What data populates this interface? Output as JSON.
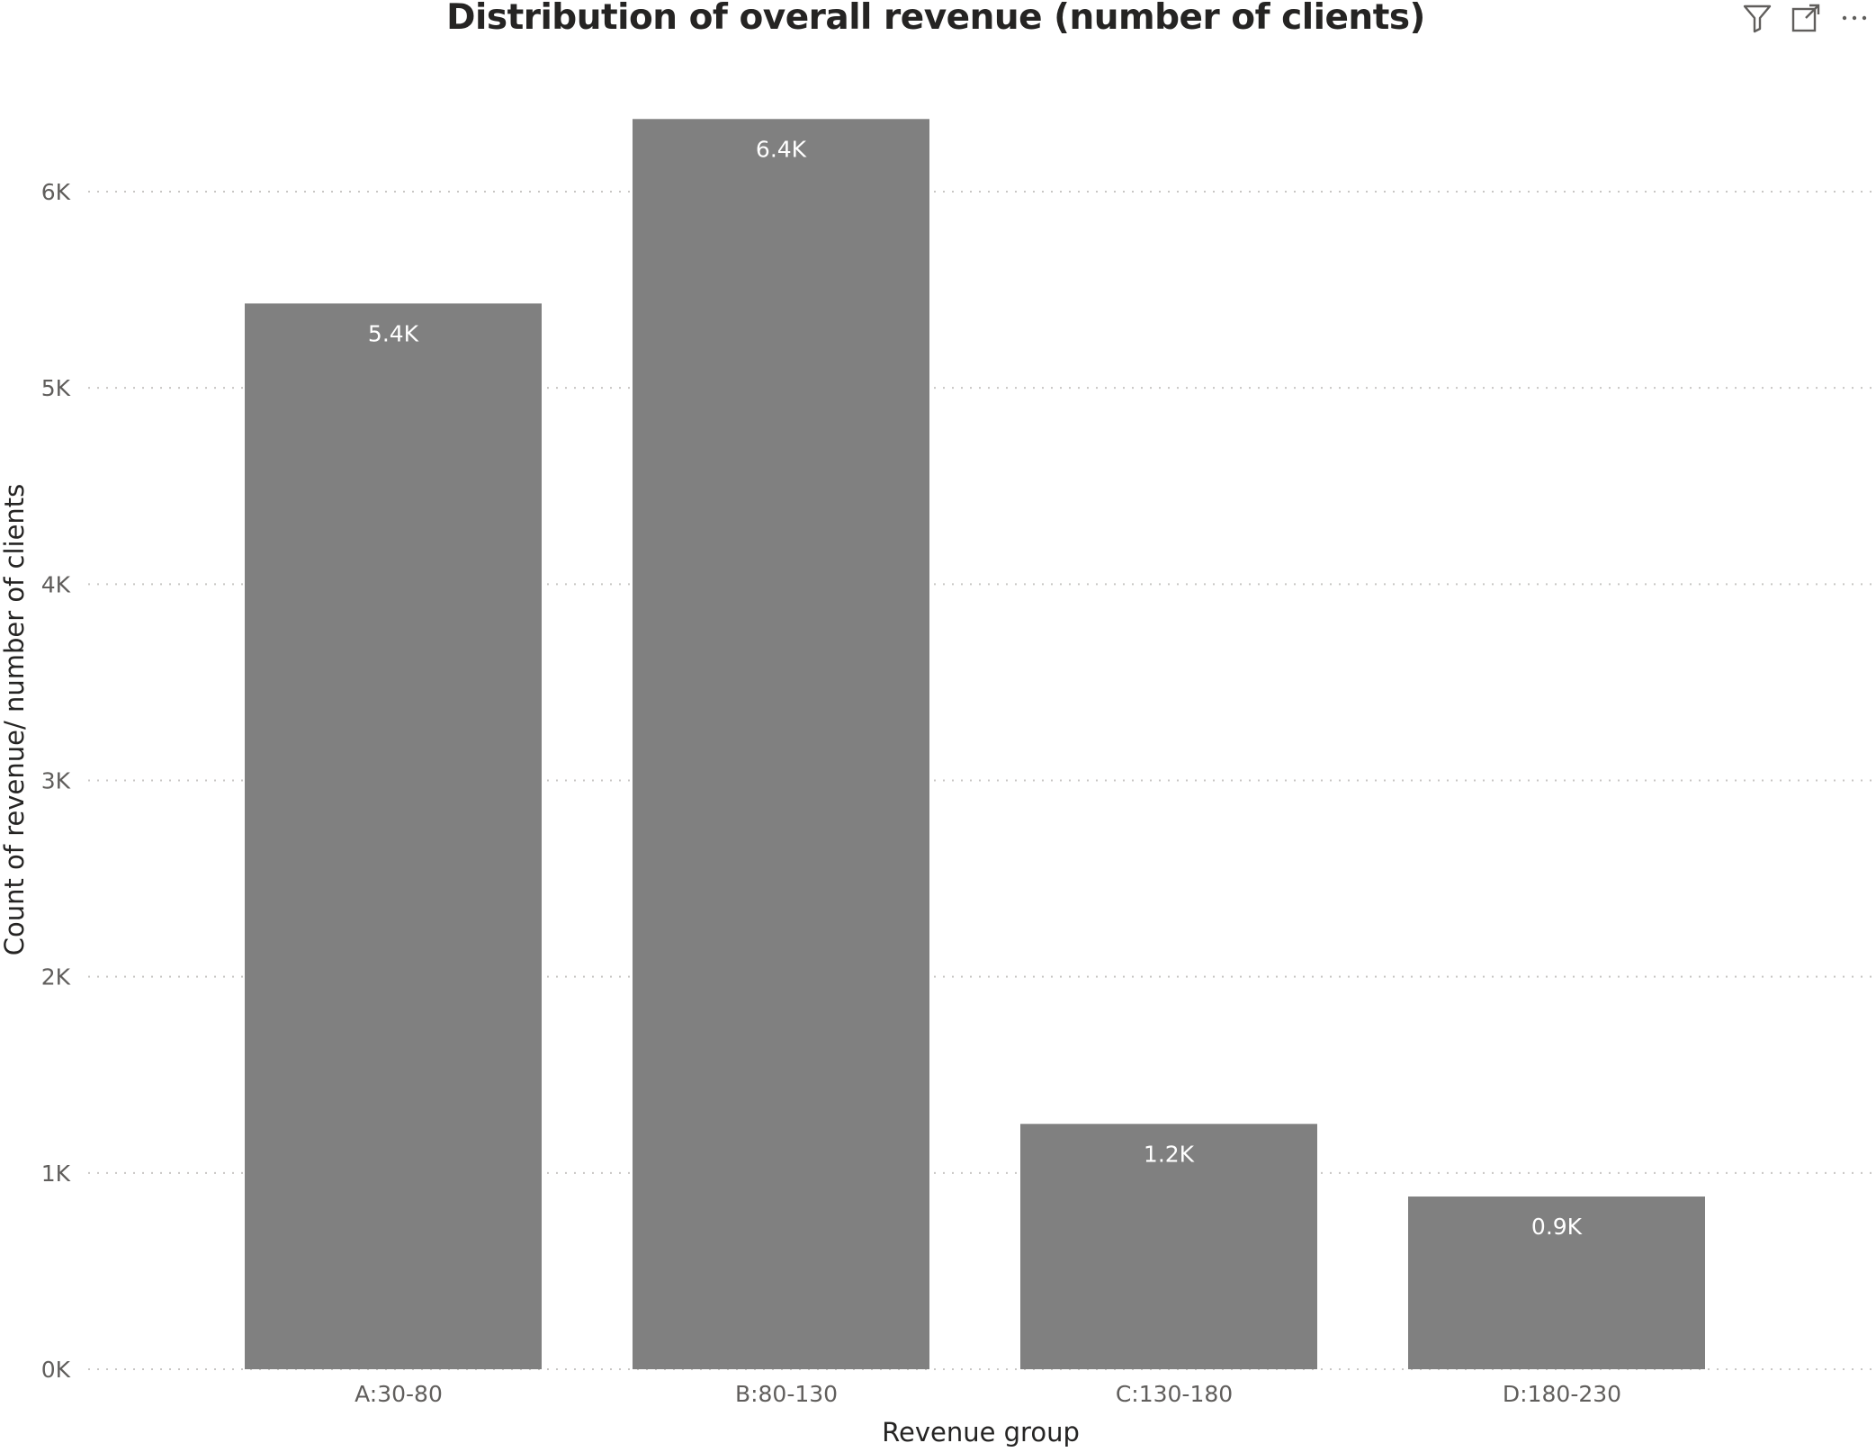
{
  "visual": {
    "header_icons": [
      "filter-icon",
      "focus-mode-icon",
      "more-options-icon"
    ]
  },
  "chart_data": {
    "type": "bar",
    "title": "Distribution of overall revenue (number of clients)",
    "xlabel": "Revenue group",
    "ylabel": "Count of revenue/ number of clients",
    "categories": [
      "A:30-80",
      "B:80-130",
      "C:130-180",
      "D:180-230"
    ],
    "values": [
      5430,
      6370,
      1250,
      880
    ],
    "data_labels": [
      "5.4K",
      "6.4K",
      "1.2K",
      "0.9K"
    ],
    "ylim": [
      0,
      6000
    ],
    "yticks": [
      0,
      1000,
      2000,
      3000,
      4000,
      5000,
      6000
    ],
    "ytick_labels": [
      "0K",
      "1K",
      "2K",
      "3K",
      "4K",
      "5K",
      "6K"
    ],
    "grid": "horizontal-dotted",
    "legend": "none",
    "bar_color": "#808080",
    "gridline_color": "#c8c6c4"
  }
}
